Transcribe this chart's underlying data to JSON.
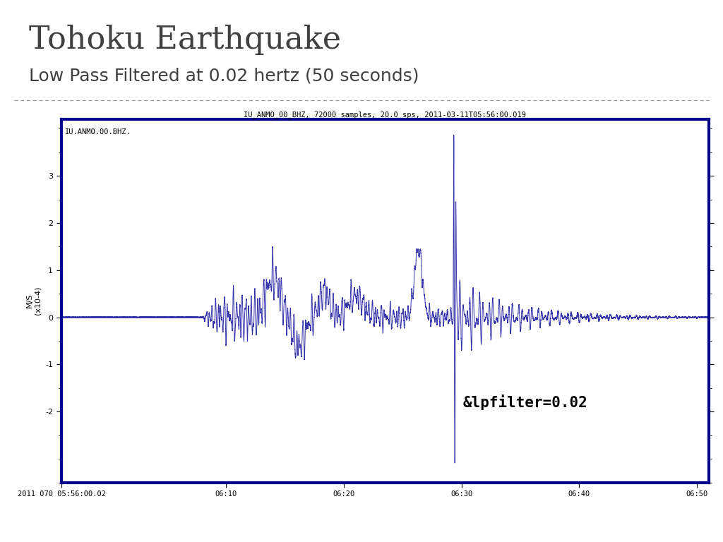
{
  "title": "Tohoku Earthquake",
  "subtitle": "Low Pass Filtered at 0.02 hertz (50 seconds)",
  "plot_title": "IU_ANMO_00_BHZ, 72000 samples, 20.0 sps, 2011-03-11T05:56:00.019",
  "station_label": "IU.ANMO.00.BHZ.",
  "annotation": "&lpfilter=0.02",
  "ylabel_line1": "M/S",
  "ylabel_line2": "(x10-4)",
  "xtick_labels": [
    "2011 070 05:56:00.02",
    "06:10",
    "06:20",
    "06:30",
    "06:40",
    "06:50"
  ],
  "xtick_minutes": [
    0,
    14,
    24,
    34,
    44,
    54
  ],
  "ytick_values": [
    -2,
    -1,
    0,
    1,
    2,
    3
  ],
  "ylim": [
    -3.5,
    4.2
  ],
  "xlim_minutes": [
    0,
    55
  ],
  "line_color": "#3333aa",
  "border_color": "#00008B",
  "title_color": "#404040",
  "fig_background": "#ffffff",
  "title_fontsize": 32,
  "subtitle_fontsize": 18
}
